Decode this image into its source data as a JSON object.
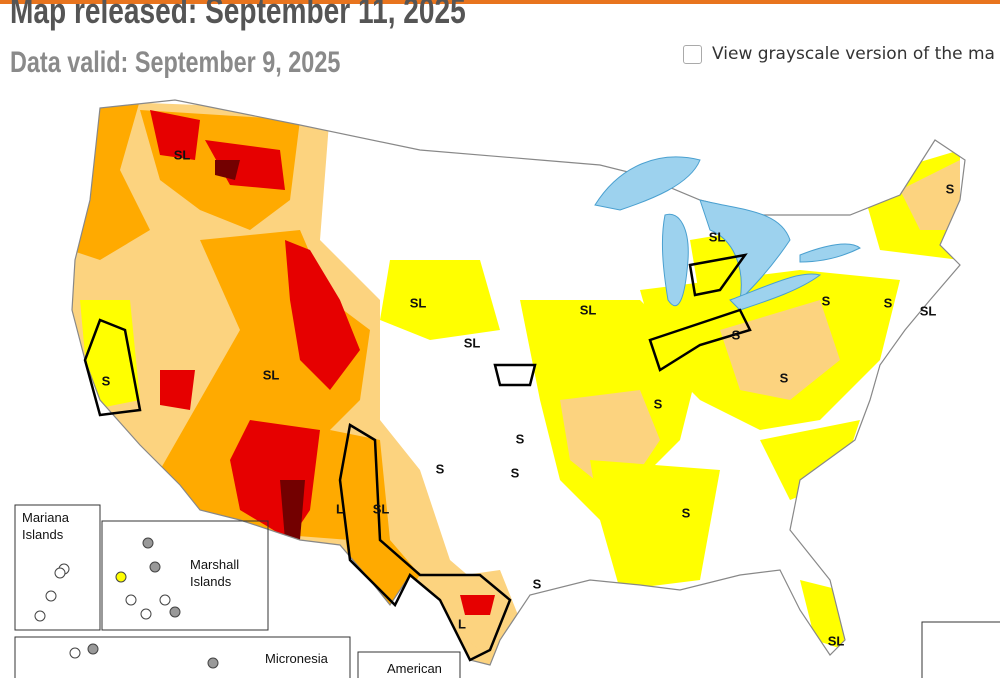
{
  "header": {
    "title": "Map released: September 11, 2025",
    "subtitle": "Data valid: September 9, 2025"
  },
  "grayscale_toggle": {
    "label": "View grayscale version of the ma"
  },
  "map": {
    "labels": [
      "SL",
      "SL",
      "S",
      "SL",
      "SL",
      "S",
      "S",
      "SL",
      "SL",
      "S",
      "S",
      "SL",
      "S",
      "S",
      "S",
      "S",
      "S",
      "S",
      "L",
      "SL",
      "S",
      "L",
      "SL"
    ]
  },
  "insets": [
    {
      "label": "Mariana Islands"
    },
    {
      "label": "Marshall Islands"
    },
    {
      "label": "Micronesia"
    },
    {
      "label": "American"
    }
  ]
}
